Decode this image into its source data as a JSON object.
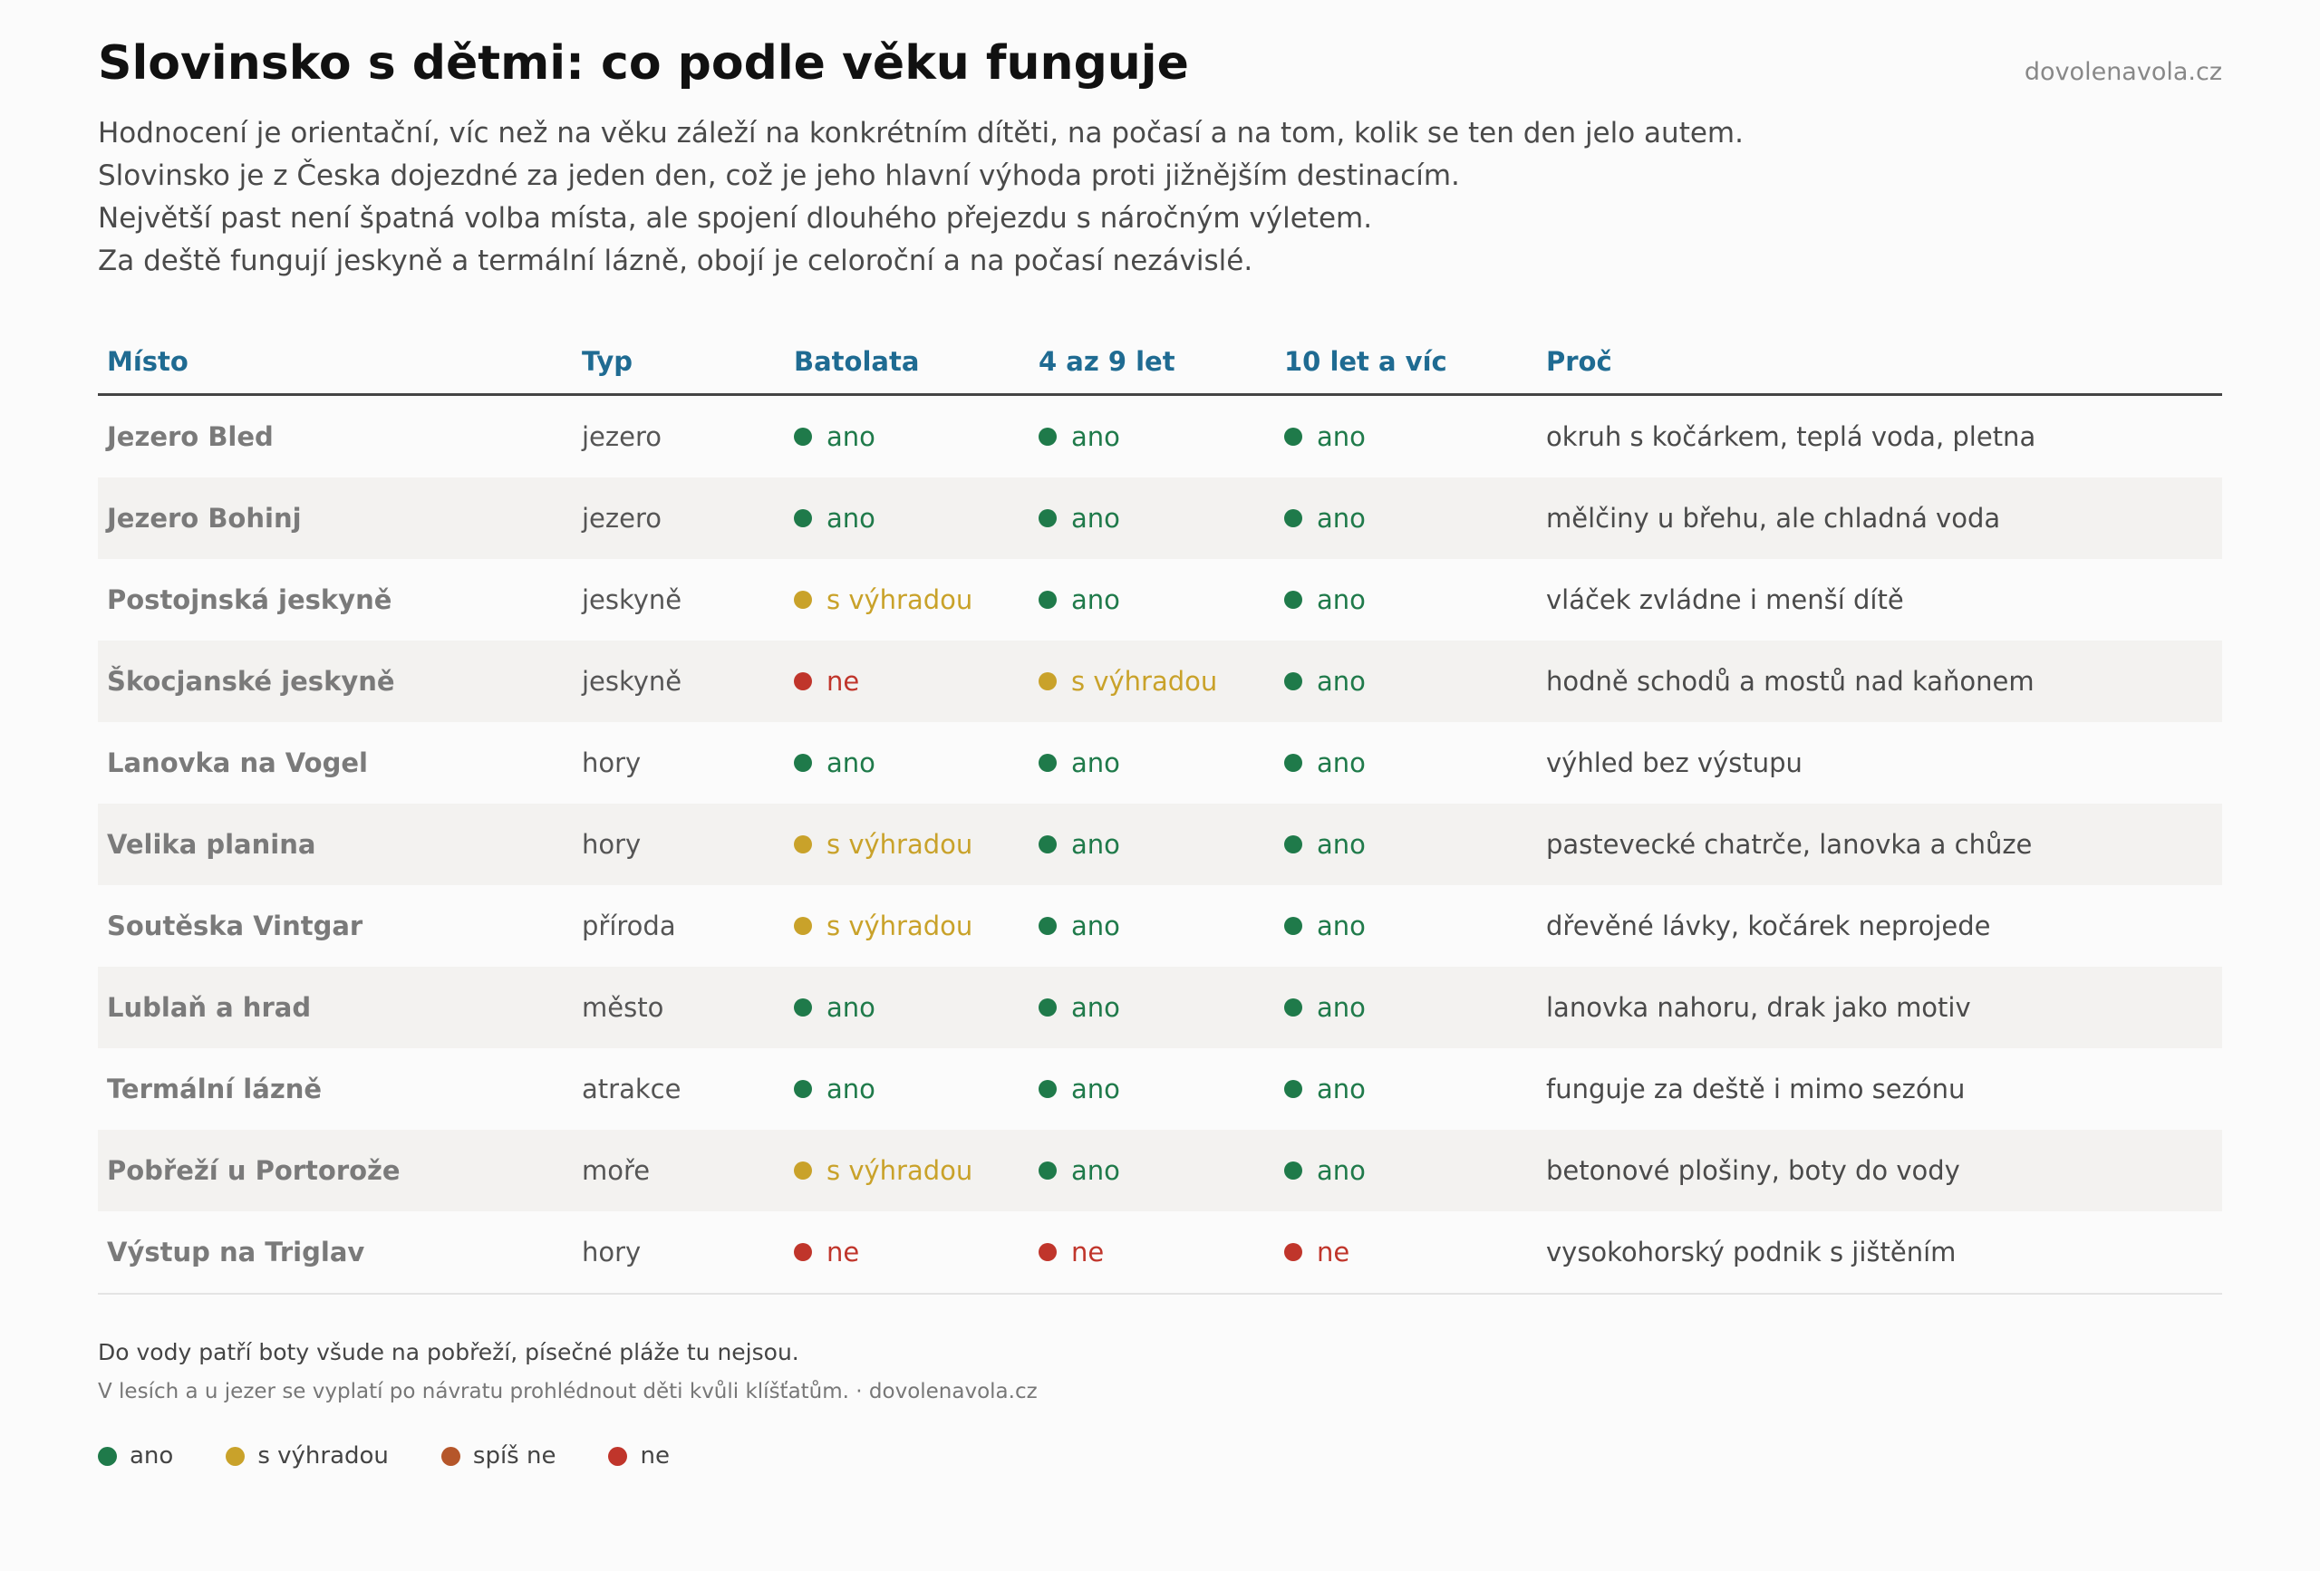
{
  "title": "Slovinsko s dětmi: co podle věku funguje",
  "brand": "dovolenavola.cz",
  "intro": [
    "Hodnocení je orientační, víc než na věku záleží na konkrétním dítěti, na počasí a na tom, kolik se ten den jelo autem.",
    "Slovinsko je z Česka dojezdné za jeden den, což je jeho hlavní výhoda proti jižnějším destinacím.",
    "Největší past není špatná volba místa, ale spojení dlouhého přejezdu s náročným výletem.",
    "Za deště fungují jeskyně a termální lázně, obojí je celoroční a na počasí nezávislé."
  ],
  "headers": {
    "place": "Místo",
    "type": "Typ",
    "toddlers": "Batolata",
    "mid": "4 az 9 let",
    "older": "10 let a víc",
    "why": "Proč"
  },
  "rating_colors": {
    "ano": "#1f7a4a",
    "s výhradou": "#c9a22a",
    "spíš ne": "#b5562a",
    "ne": "#c0352b"
  },
  "rows": [
    {
      "place": "Jezero Bled",
      "type": "jezero",
      "toddlers": "ano",
      "mid": "ano",
      "older": "ano",
      "why": "okruh s kočárkem, teplá voda, pletna"
    },
    {
      "place": "Jezero Bohinj",
      "type": "jezero",
      "toddlers": "ano",
      "mid": "ano",
      "older": "ano",
      "why": "mělčiny u břehu, ale chladná voda"
    },
    {
      "place": "Postojnská jeskyně",
      "type": "jeskyně",
      "toddlers": "s výhradou",
      "mid": "ano",
      "older": "ano",
      "why": "vláček zvládne i menší dítě"
    },
    {
      "place": "Škocjanské jeskyně",
      "type": "jeskyně",
      "toddlers": "ne",
      "mid": "s výhradou",
      "older": "ano",
      "why": "hodně schodů a mostů nad kaňonem"
    },
    {
      "place": "Lanovka na Vogel",
      "type": "hory",
      "toddlers": "ano",
      "mid": "ano",
      "older": "ano",
      "why": "výhled bez výstupu"
    },
    {
      "place": "Velika planina",
      "type": "hory",
      "toddlers": "s výhradou",
      "mid": "ano",
      "older": "ano",
      "why": "pastevecké chatrče, lanovka a chůze"
    },
    {
      "place": "Soutěska Vintgar",
      "type": "příroda",
      "toddlers": "s výhradou",
      "mid": "ano",
      "older": "ano",
      "why": "dřevěné lávky, kočárek neprojede"
    },
    {
      "place": "Lublaň a hrad",
      "type": "město",
      "toddlers": "ano",
      "mid": "ano",
      "older": "ano",
      "why": "lanovka nahoru, drak jako motiv"
    },
    {
      "place": "Termální lázně",
      "type": "atrakce",
      "toddlers": "ano",
      "mid": "ano",
      "older": "ano",
      "why": "funguje za deště i mimo sezónu"
    },
    {
      "place": "Pobřeží u Portorože",
      "type": "moře",
      "toddlers": "s výhradou",
      "mid": "ano",
      "older": "ano",
      "why": "betonové plošiny, boty do vody"
    },
    {
      "place": "Výstup na Triglav",
      "type": "hory",
      "toddlers": "ne",
      "mid": "ne",
      "older": "ne",
      "why": "vysokohorský podnik s jištěním"
    }
  ],
  "notes": {
    "line1": "Do vody patří boty všude na pobřeží, písečné pláže tu nejsou.",
    "line2": "V lesích a u jezer se vyplatí po návratu prohlédnout děti kvůli klíšťatům. · dovolenavola.cz"
  },
  "legend": [
    "ano",
    "s výhradou",
    "spíš ne",
    "ne"
  ]
}
